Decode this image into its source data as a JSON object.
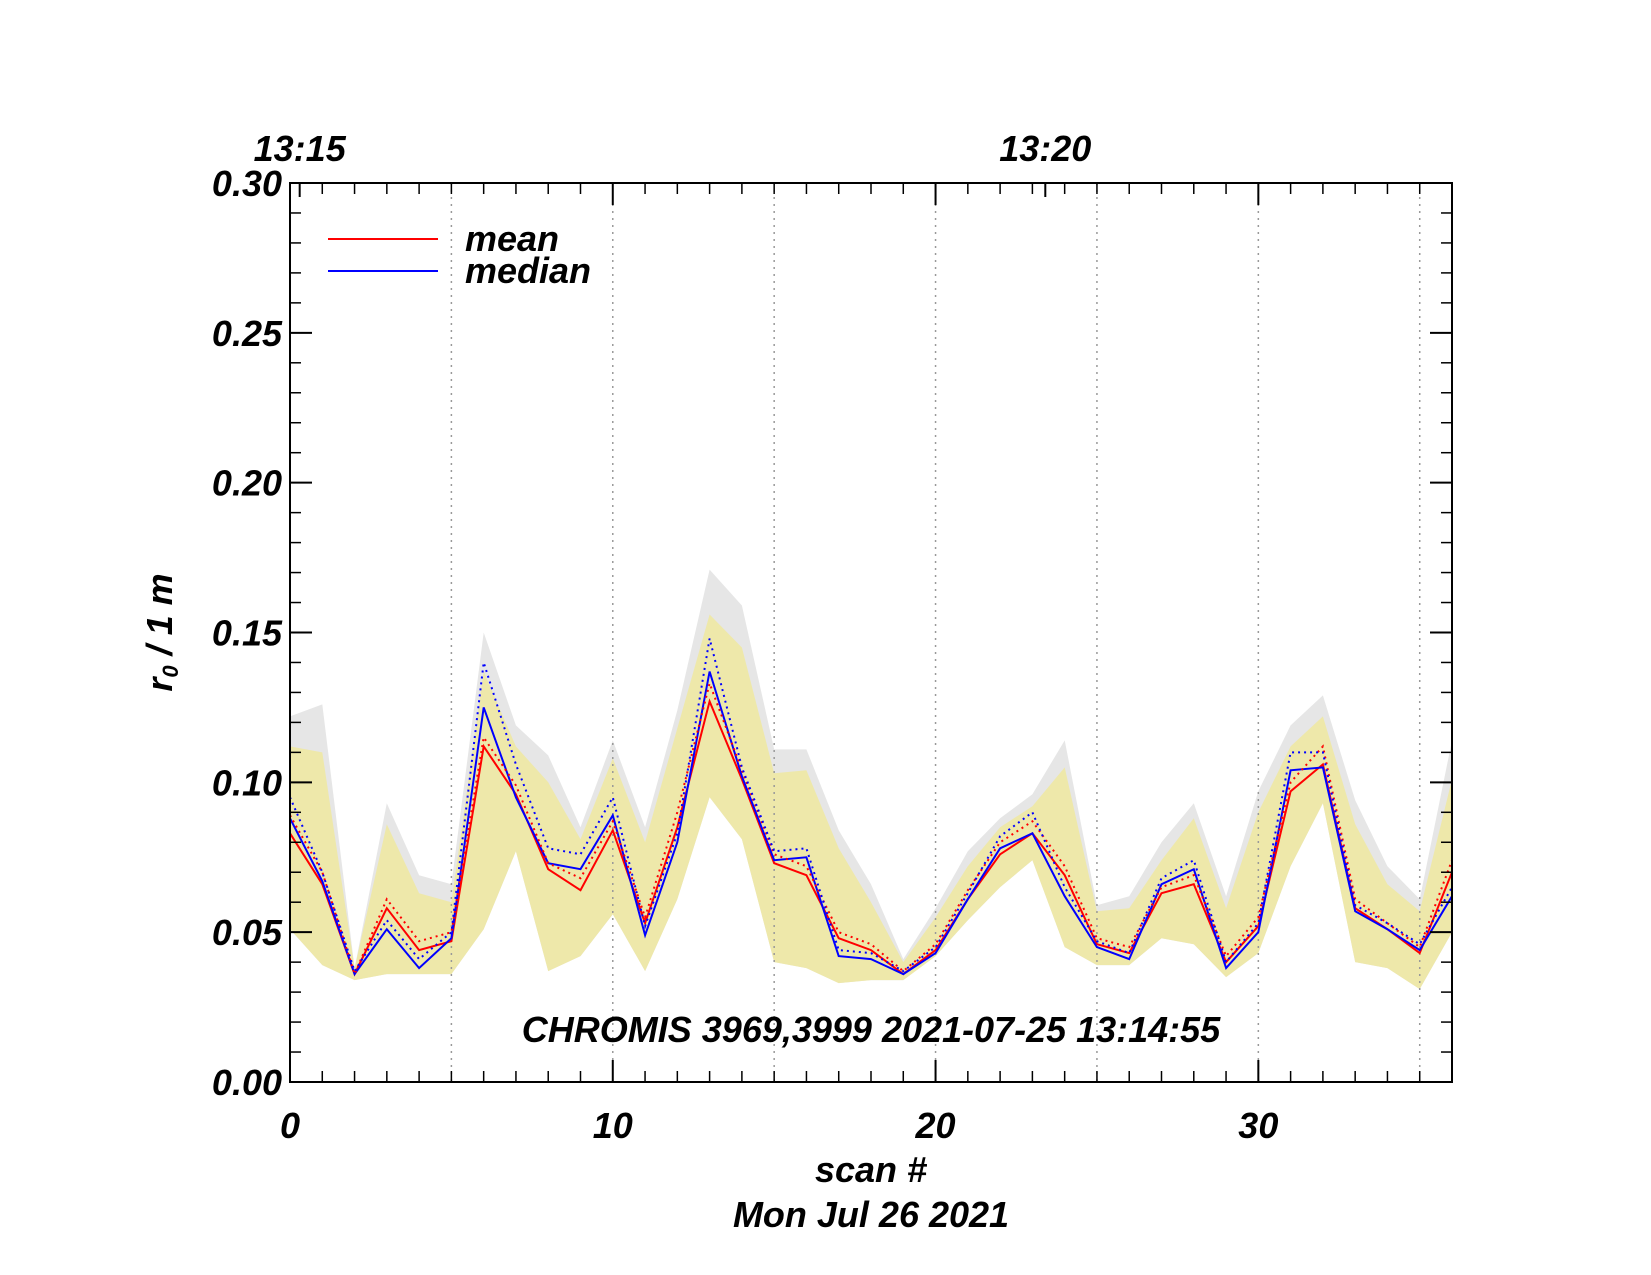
{
  "chart_data": {
    "type": "line",
    "xlabel": "scan #",
    "date_label": "Mon Jul 26 2021",
    "ylabel": "r₀ / 1 m",
    "ylabel_main": "r",
    "ylabel_sub": "0",
    "ylabel_rest": " / 1 m",
    "xlim": [
      0,
      36
    ],
    "ylim": [
      0,
      0.3
    ],
    "x_ticks": [
      0,
      10,
      20,
      30
    ],
    "x_tick_labels": [
      "0",
      "10",
      "20",
      "30"
    ],
    "y_ticks": [
      0.0,
      0.05,
      0.1,
      0.15,
      0.2,
      0.25,
      0.3
    ],
    "y_tick_labels": [
      "0.00",
      "0.05",
      "0.10",
      "0.15",
      "0.20",
      "0.25",
      "0.30"
    ],
    "top_time_labels": [
      {
        "x": 0.3,
        "label": "13:15"
      },
      {
        "x": 23.4,
        "label": "13:20"
      }
    ],
    "vertical_dotted_lines": [
      5,
      10,
      15,
      20,
      25,
      30,
      35
    ],
    "annotation": "CHROMIS 3969,3999 2021-07-25 13:14:55",
    "legend": [
      {
        "name": "mean",
        "color": "#ff0000"
      },
      {
        "name": "median",
        "color": "#0000ff"
      }
    ],
    "x": [
      0,
      1,
      2,
      3,
      4,
      5,
      6,
      7,
      8,
      9,
      10,
      11,
      12,
      13,
      14,
      15,
      16,
      17,
      18,
      19,
      20,
      21,
      22,
      23,
      24,
      25,
      26,
      27,
      28,
      29,
      30,
      31,
      32,
      33,
      34,
      35,
      36
    ],
    "series": [
      {
        "name": "mean",
        "color": "#ff0000",
        "style": "solid",
        "values": [
          0.083,
          0.066,
          0.036,
          0.058,
          0.044,
          0.047,
          0.112,
          0.096,
          0.071,
          0.064,
          0.084,
          0.053,
          0.085,
          0.127,
          0.101,
          0.073,
          0.069,
          0.048,
          0.044,
          0.036,
          0.044,
          0.061,
          0.076,
          0.083,
          0.069,
          0.046,
          0.043,
          0.063,
          0.066,
          0.04,
          0.052,
          0.097,
          0.106,
          0.058,
          0.051,
          0.043,
          0.07
        ]
      },
      {
        "name": "median",
        "color": "#0000ff",
        "style": "solid",
        "values": [
          0.088,
          0.067,
          0.036,
          0.051,
          0.038,
          0.048,
          0.125,
          0.095,
          0.073,
          0.071,
          0.089,
          0.049,
          0.08,
          0.137,
          0.102,
          0.074,
          0.075,
          0.042,
          0.041,
          0.036,
          0.043,
          0.061,
          0.078,
          0.083,
          0.062,
          0.045,
          0.041,
          0.066,
          0.071,
          0.038,
          0.05,
          0.104,
          0.105,
          0.057,
          0.051,
          0.044,
          0.062
        ]
      },
      {
        "name": "mean upper",
        "color": "#ff0000",
        "style": "dotted",
        "values": [
          0.089,
          0.07,
          0.036,
          0.061,
          0.047,
          0.05,
          0.115,
          0.099,
          0.073,
          0.068,
          0.087,
          0.055,
          0.09,
          0.133,
          0.104,
          0.076,
          0.072,
          0.05,
          0.046,
          0.037,
          0.046,
          0.064,
          0.08,
          0.087,
          0.072,
          0.048,
          0.045,
          0.065,
          0.069,
          0.042,
          0.055,
          0.1,
          0.112,
          0.061,
          0.053,
          0.045,
          0.074
        ]
      },
      {
        "name": "median upper",
        "color": "#0000ff",
        "style": "dotted",
        "values": [
          0.095,
          0.07,
          0.037,
          0.054,
          0.041,
          0.05,
          0.14,
          0.106,
          0.078,
          0.076,
          0.095,
          0.052,
          0.083,
          0.148,
          0.105,
          0.077,
          0.078,
          0.044,
          0.043,
          0.037,
          0.045,
          0.063,
          0.082,
          0.09,
          0.065,
          0.047,
          0.043,
          0.068,
          0.074,
          0.04,
          0.053,
          0.11,
          0.11,
          0.059,
          0.053,
          0.046,
          0.065
        ]
      }
    ],
    "bands": [
      {
        "name": "range",
        "color": "#e6e6e6",
        "upper": [
          0.122,
          0.126,
          0.038,
          0.093,
          0.069,
          0.066,
          0.15,
          0.119,
          0.109,
          0.085,
          0.114,
          0.085,
          0.124,
          0.171,
          0.159,
          0.111,
          0.111,
          0.084,
          0.066,
          0.041,
          0.058,
          0.077,
          0.088,
          0.096,
          0.114,
          0.059,
          0.062,
          0.08,
          0.093,
          0.062,
          0.097,
          0.119,
          0.129,
          0.094,
          0.072,
          0.061,
          0.114
        ]
      },
      {
        "name": "inner",
        "color": "#eee8aa",
        "upper": [
          0.112,
          0.11,
          0.038,
          0.086,
          0.063,
          0.06,
          0.137,
          0.112,
          0.1,
          0.081,
          0.108,
          0.08,
          0.118,
          0.156,
          0.145,
          0.103,
          0.104,
          0.078,
          0.06,
          0.04,
          0.055,
          0.072,
          0.085,
          0.092,
          0.105,
          0.057,
          0.058,
          0.074,
          0.088,
          0.058,
          0.09,
          0.112,
          0.122,
          0.086,
          0.066,
          0.057,
          0.101
        ],
        "lower": [
          0.051,
          0.039,
          0.034,
          0.036,
          0.036,
          0.036,
          0.051,
          0.077,
          0.037,
          0.042,
          0.056,
          0.037,
          0.061,
          0.095,
          0.081,
          0.04,
          0.038,
          0.033,
          0.034,
          0.034,
          0.042,
          0.054,
          0.065,
          0.074,
          0.045,
          0.039,
          0.039,
          0.048,
          0.046,
          0.035,
          0.043,
          0.072,
          0.093,
          0.04,
          0.038,
          0.031,
          0.05
        ]
      }
    ]
  }
}
